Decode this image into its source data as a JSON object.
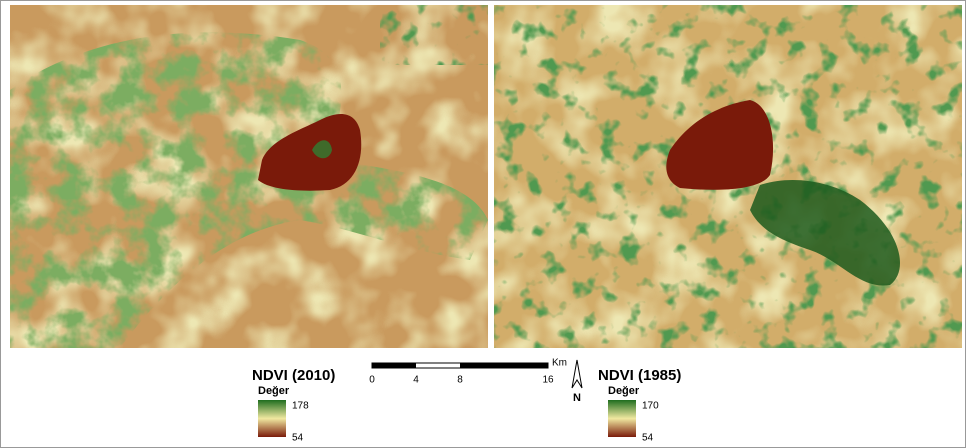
{
  "maps": [
    {
      "title": "NDVI (2010)",
      "legend": {
        "label": "Değer",
        "max": 178,
        "min": 54
      }
    },
    {
      "title": "NDVI (1985)",
      "legend": {
        "label": "Değer",
        "max": 170,
        "min": 54
      }
    }
  ],
  "scale_bar": {
    "unit": "Km",
    "ticks": [
      0,
      4,
      8,
      16
    ]
  },
  "north_arrow": {
    "label": "N"
  }
}
